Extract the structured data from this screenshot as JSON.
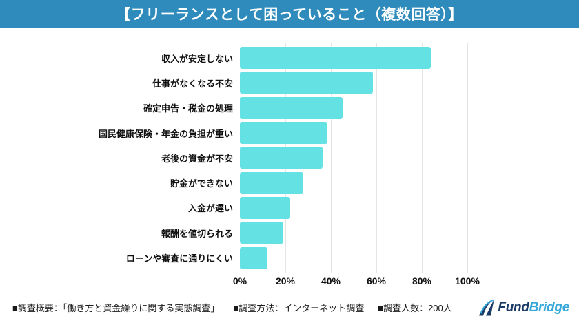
{
  "header": {
    "title": "【フリーランスとして困っていること（複数回答）】",
    "bg_color": "#2e8bbc",
    "text_color": "#ffffff"
  },
  "chart_data": {
    "type": "bar",
    "orientation": "horizontal",
    "title": "フリーランスとして困っていること（複数回答）",
    "categories": [
      "収入が安定しない",
      "仕事がなくなる不安",
      "確定申告・税金の処理",
      "国民健康保険・年金の負担が重い",
      "老後の資金が不安",
      "貯金ができない",
      "入金が遅い",
      "報酬を値切られる",
      "ローンや審査に通りにくい"
    ],
    "values": [
      84,
      58.5,
      45,
      38.5,
      36.5,
      28,
      22,
      19,
      12
    ],
    "unit": "%",
    "xlabel": "",
    "ylabel": "",
    "xlim": [
      0,
      100
    ],
    "x_ticks": [
      "0%",
      "20%",
      "40%",
      "60%",
      "80%",
      "100%"
    ],
    "grid": true,
    "legend": "none",
    "bar_color": "#64e1e3",
    "gridline_color": "#e4e4e4"
  },
  "footer": {
    "notes": [
      "■調査概要：「働き方と資金繰りに関する実態調査」",
      "■調査方法：インターネット調査",
      "■調査人数：200人"
    ],
    "logo": {
      "icon": "fundbridge-swoosh-icon",
      "text_primary": "Fund",
      "text_secondary": "Bridge",
      "color_primary": "#1b3a66",
      "color_secondary": "#35a8d8"
    }
  }
}
